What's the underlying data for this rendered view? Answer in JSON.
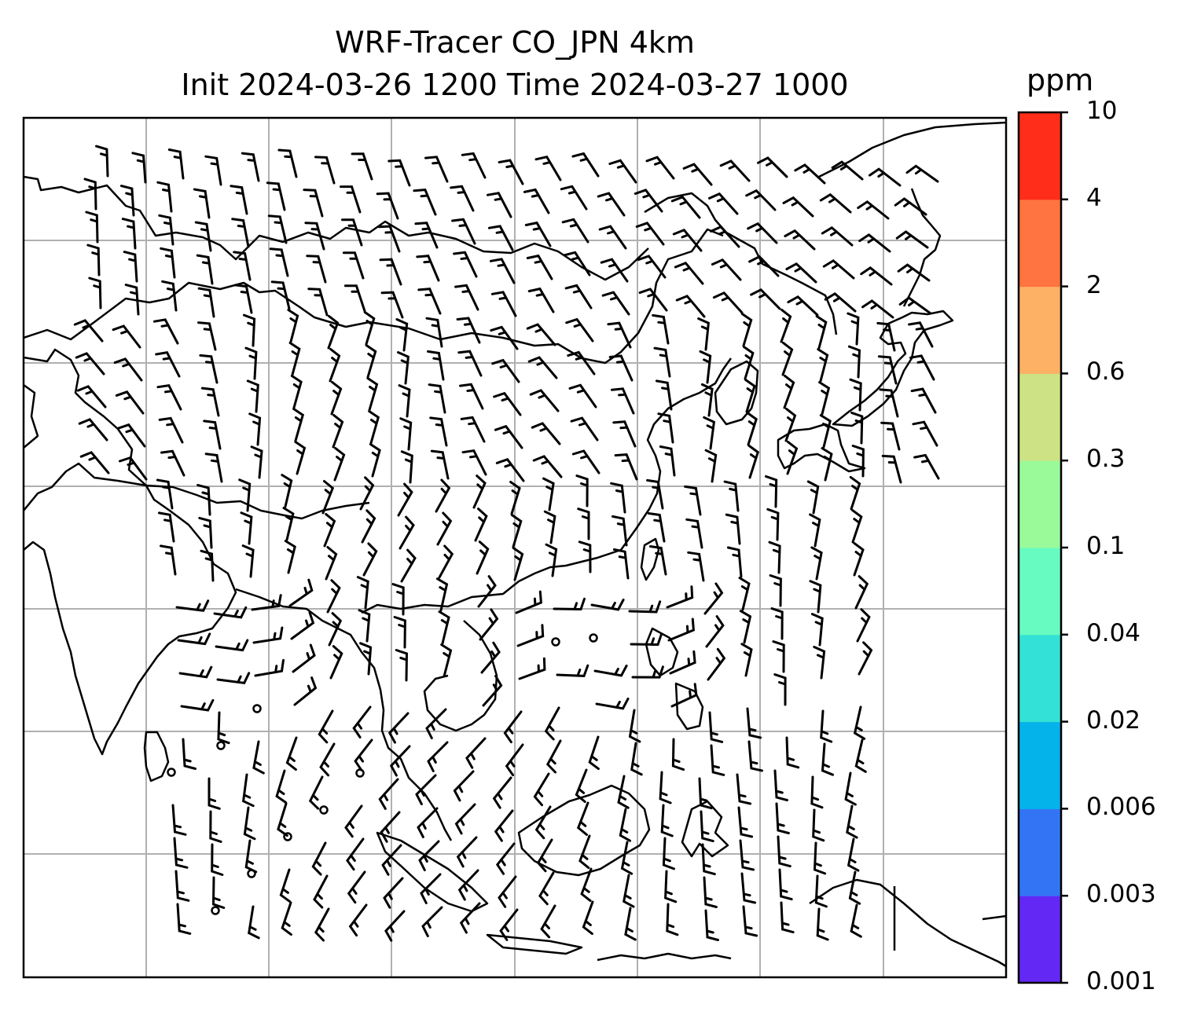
{
  "title": {
    "line1": "WRF-Tracer CO_JPN 4km",
    "line2": "Init 2024-03-26 1200 Time 2024-03-27 1000"
  },
  "colorbar": {
    "unit": "ppm",
    "levels": [
      "0.001",
      "0.003",
      "0.006",
      "0.02",
      "0.04",
      "0.1",
      "0.3",
      "0.6",
      "2",
      "4",
      "10"
    ],
    "colors": [
      "#6428f5",
      "#3374f5",
      "#05b3eb",
      "#34e1d6",
      "#67fbc1",
      "#9afa9a",
      "#cde284",
      "#fcb165",
      "#ff7440",
      "#ff2d1a"
    ]
  },
  "map": {
    "gridlines": true,
    "gridline_color": "#b0b0b0",
    "coastline_color": "#000000",
    "barb_color": "#000000"
  }
}
